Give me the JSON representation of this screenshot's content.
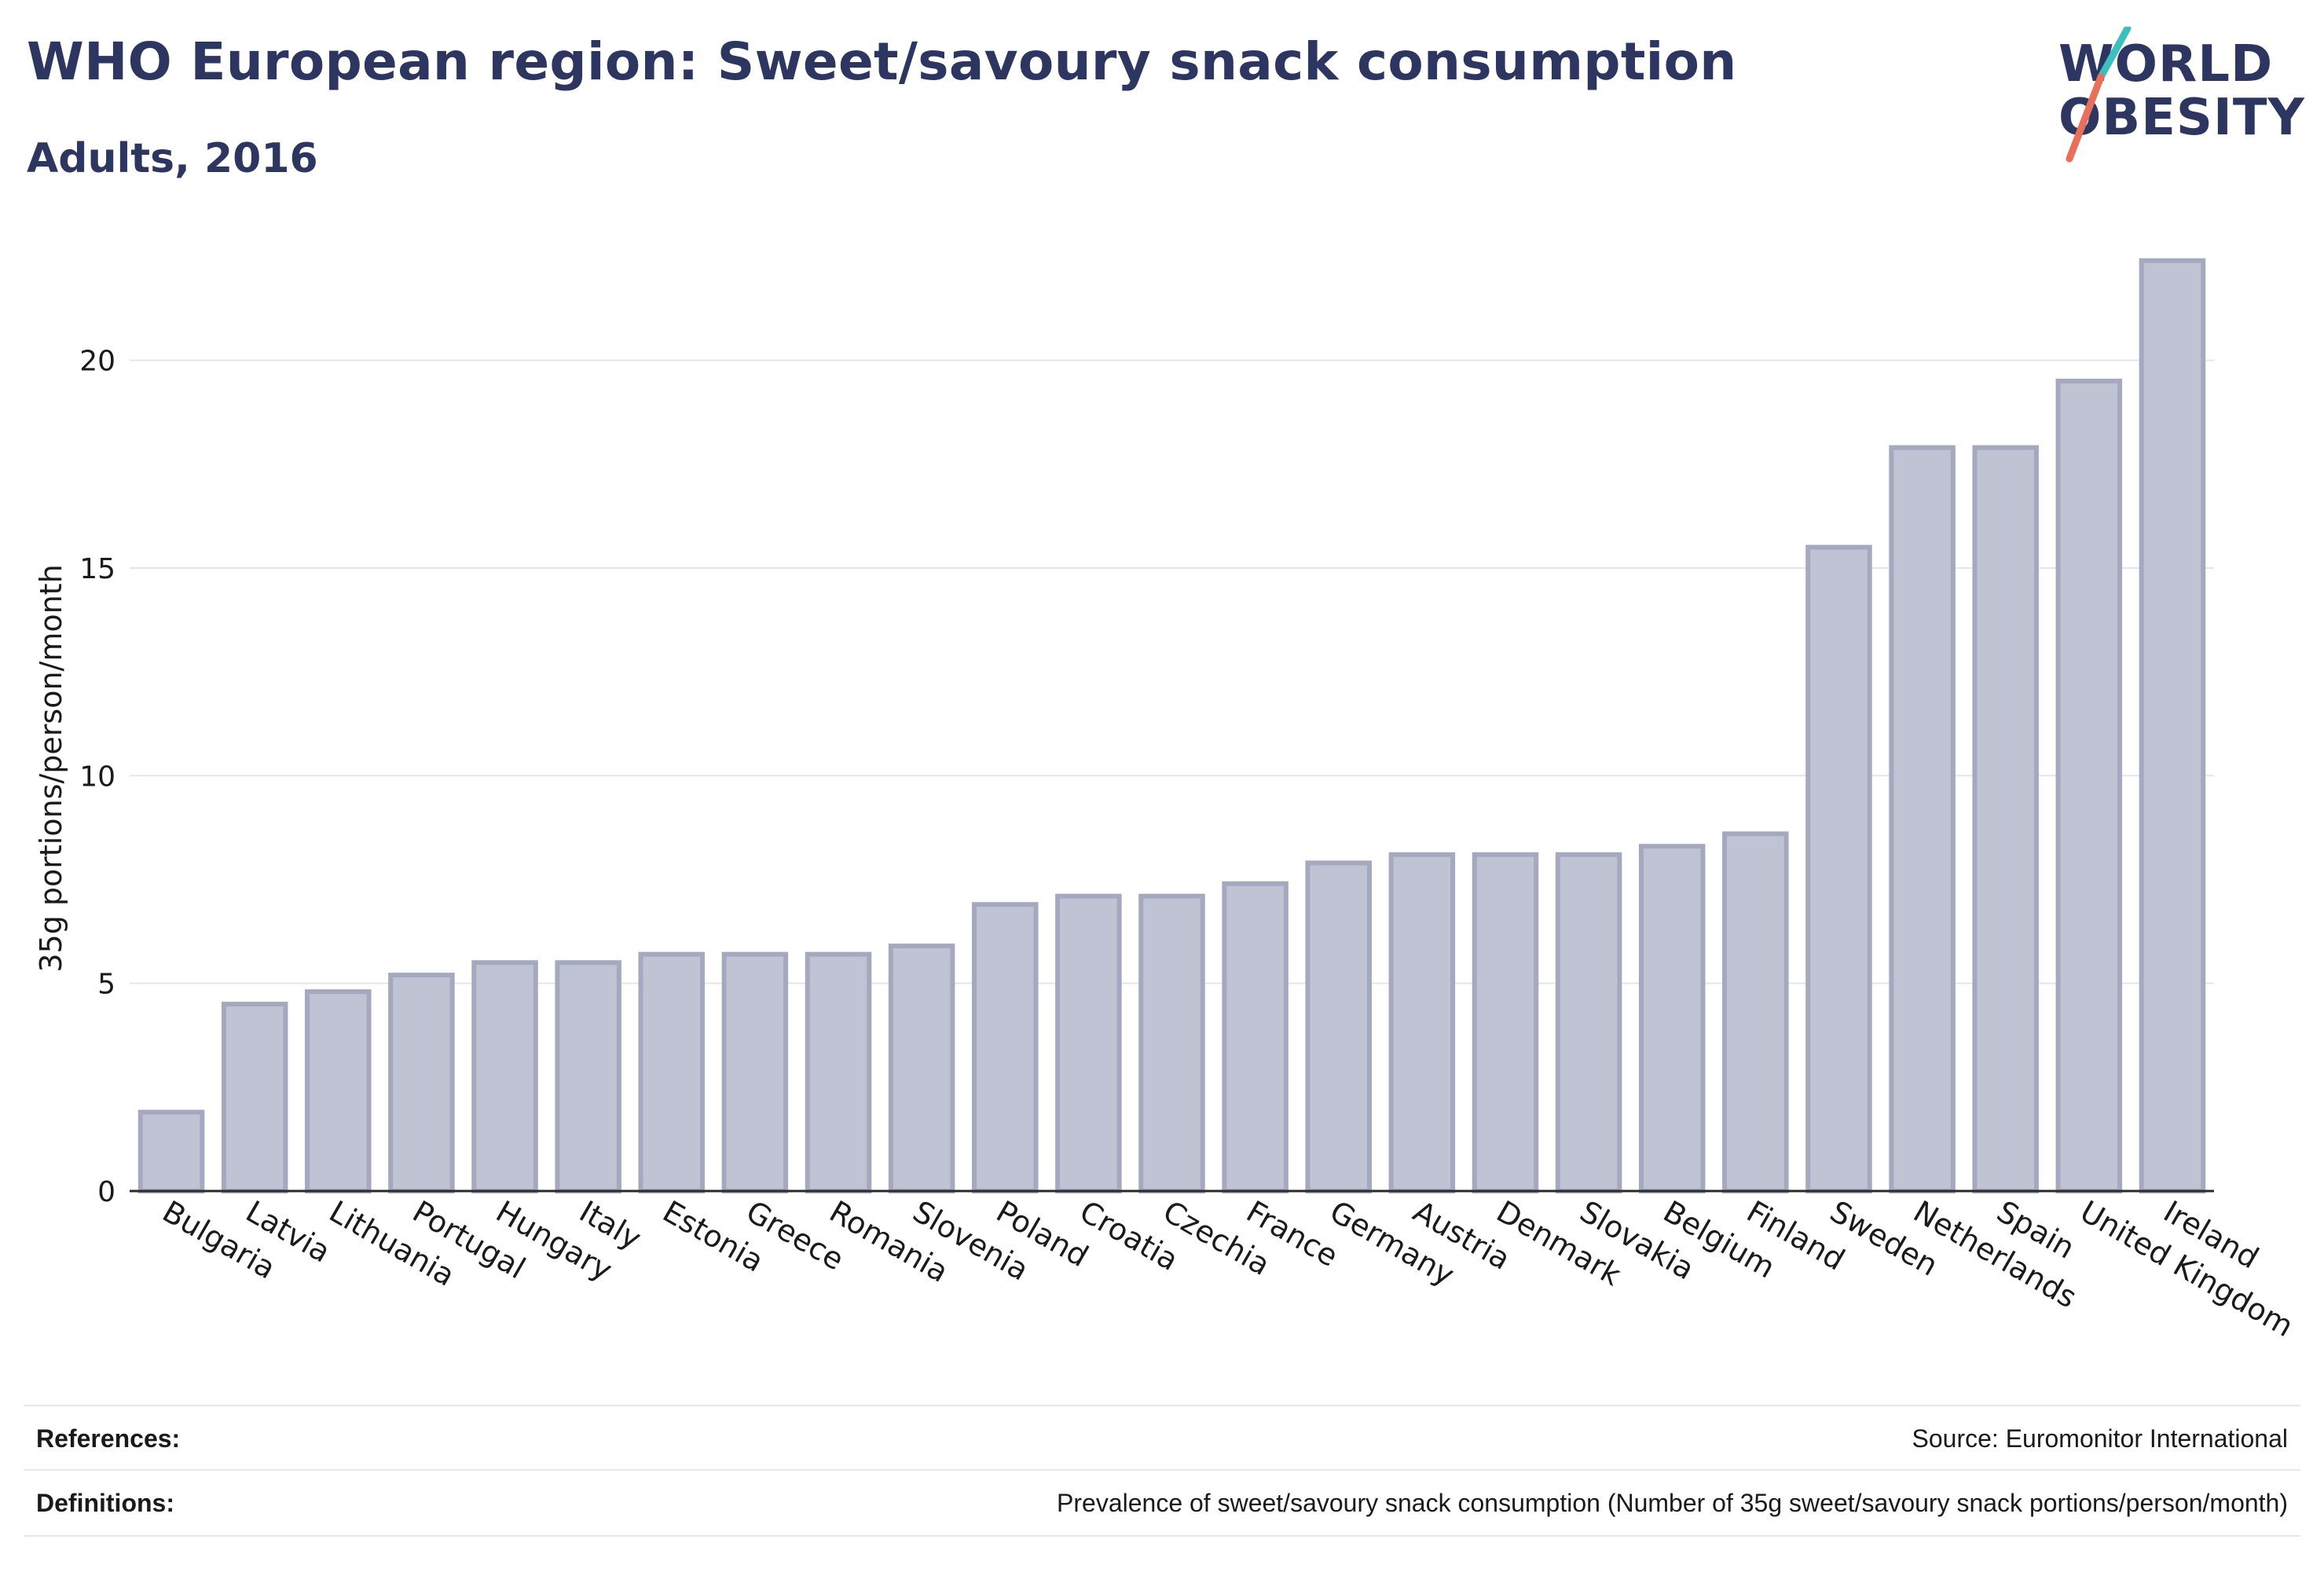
{
  "header": {
    "title": "WHO European region: Sweet/savoury snack consumption",
    "subtitle": "Adults, 2016"
  },
  "logo": {
    "line1": "WORLD",
    "line2": "OBESITY",
    "accent_teal": "#3bbfbf",
    "accent_coral": "#e8705a"
  },
  "chart_data": {
    "type": "bar",
    "title": "WHO European region: Sweet/savoury snack consumption",
    "subtitle": "Adults, 2016",
    "xlabel": "",
    "ylabel": "35g portions/person/month",
    "ylim": [
      0,
      23
    ],
    "yticks": [
      0,
      5,
      10,
      15,
      20
    ],
    "grid": true,
    "bar_color": "#c0c3d3",
    "bar_border_color": "#a4a9c0",
    "categories": [
      "Bulgaria",
      "Latvia",
      "Lithuania",
      "Portugal",
      "Hungary",
      "Italy",
      "Estonia",
      "Greece",
      "Romania",
      "Slovenia",
      "Poland",
      "Croatia",
      "Czechia",
      "France",
      "Germany",
      "Austria",
      "Denmark",
      "Slovakia",
      "Belgium",
      "Finland",
      "Sweden",
      "Netherlands",
      "Spain",
      "United Kingdom",
      "Ireland"
    ],
    "values": [
      1.9,
      4.5,
      4.8,
      5.2,
      5.5,
      5.5,
      5.7,
      5.7,
      5.7,
      5.9,
      6.9,
      7.1,
      7.1,
      7.4,
      7.9,
      8.1,
      8.1,
      8.1,
      8.3,
      8.6,
      15.5,
      17.9,
      17.9,
      19.5,
      22.4
    ]
  },
  "footer": {
    "references_label": "References:",
    "references_value": "Source: Euromonitor International",
    "definitions_label": "Definitions:",
    "definitions_value": "Prevalence of sweet/savoury snack consumption (Number of 35g sweet/savoury snack portions/person/month)"
  }
}
